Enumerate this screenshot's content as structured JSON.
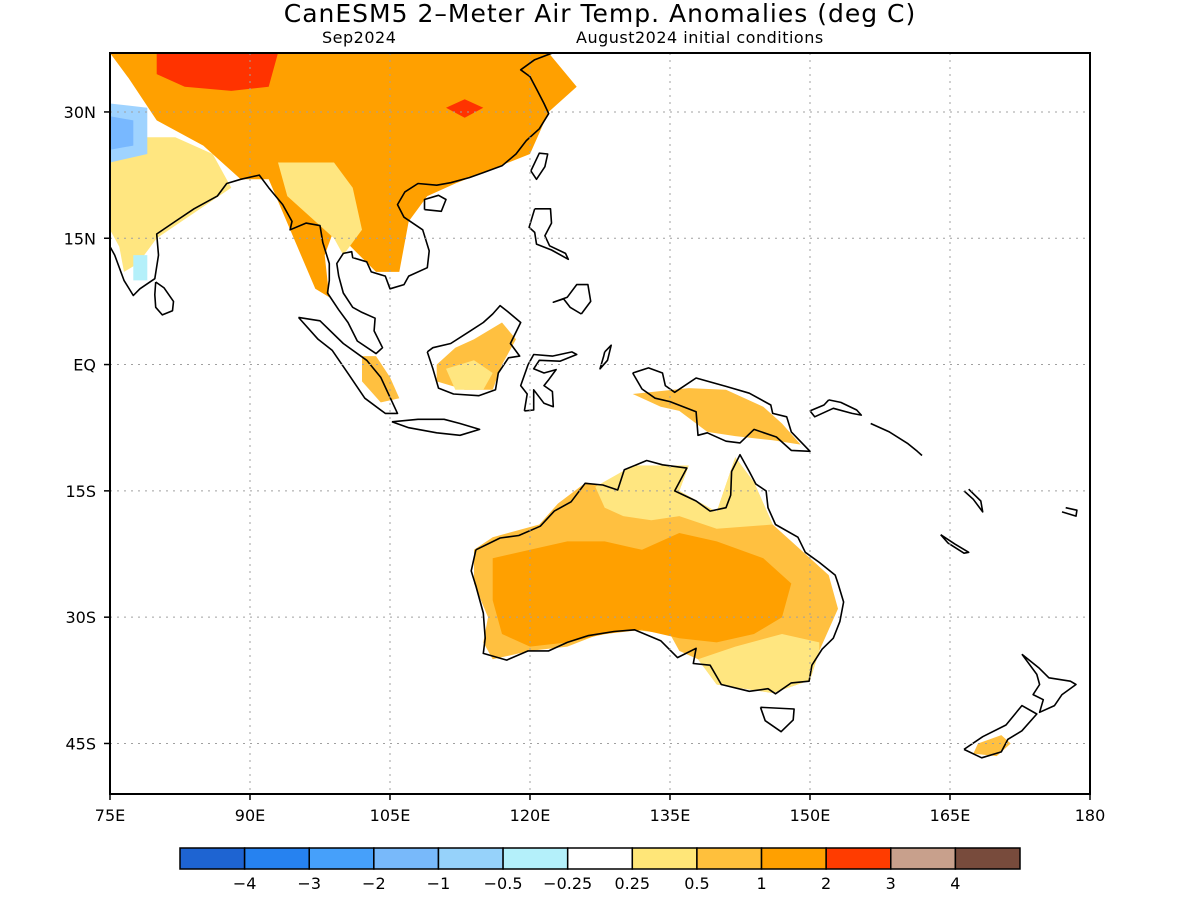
{
  "title": "CanESM5 2–Meter Air Temp. Anomalies (deg C)",
  "subtitle_left": "Sep2024",
  "subtitle_right": "August2024 initial conditions",
  "map": {
    "lon_range": [
      75,
      180
    ],
    "lat_range": [
      -51,
      37
    ],
    "lat_ticks": [
      {
        "value": 30,
        "label": "30N"
      },
      {
        "value": 15,
        "label": "15N"
      },
      {
        "value": 0,
        "label": "EQ"
      },
      {
        "value": -15,
        "label": "15S"
      },
      {
        "value": -30,
        "label": "30S"
      },
      {
        "value": -45,
        "label": "45S"
      }
    ],
    "lon_ticks": [
      {
        "value": 75,
        "label": "75E"
      },
      {
        "value": 90,
        "label": "90E"
      },
      {
        "value": 105,
        "label": "105E"
      },
      {
        "value": 120,
        "label": "120E"
      },
      {
        "value": 135,
        "label": "135E"
      },
      {
        "value": 150,
        "label": "150E"
      },
      {
        "value": 165,
        "label": "165E"
      },
      {
        "value": 180,
        "label": "180"
      }
    ],
    "grid": true,
    "anomaly_regions": [
      {
        "name": "Asia",
        "level": 1.5,
        "color": "#ffa000",
        "polygon": [
          [
            75,
            37
          ],
          [
            122,
            37
          ],
          [
            125,
            33
          ],
          [
            122,
            30
          ],
          [
            120,
            25
          ],
          [
            112,
            21.5
          ],
          [
            109,
            20
          ],
          [
            107,
            17
          ],
          [
            106,
            11
          ],
          [
            103.5,
            11
          ],
          [
            99,
            16
          ],
          [
            98,
            13
          ],
          [
            98.5,
            8
          ],
          [
            97,
            9
          ],
          [
            92,
            22
          ],
          [
            89,
            22
          ],
          [
            85,
            26
          ],
          [
            80,
            29
          ],
          [
            77,
            34
          ],
          [
            75,
            37
          ]
        ]
      },
      {
        "name": "India west",
        "level": 0.5,
        "color": "#ffe680",
        "polygon": [
          [
            75,
            27
          ],
          [
            82,
            27
          ],
          [
            86,
            25
          ],
          [
            88,
            21
          ],
          [
            84,
            18
          ],
          [
            80,
            15
          ],
          [
            78,
            12
          ],
          [
            76.5,
            11
          ],
          [
            76,
            14
          ],
          [
            75,
            16
          ]
        ]
      },
      {
        "name": "Indochina",
        "level": 0.5,
        "color": "#ffe680",
        "polygon": [
          [
            93,
            24
          ],
          [
            99,
            24
          ],
          [
            101,
            21
          ],
          [
            102,
            16
          ],
          [
            100,
            13
          ],
          [
            99,
            15
          ],
          [
            97,
            17
          ],
          [
            94,
            20
          ]
        ]
      },
      {
        "name": "Tibet hot",
        "level": 2.5,
        "color": "#ff3300",
        "polygon": [
          [
            80,
            37
          ],
          [
            93,
            37
          ],
          [
            92,
            33
          ],
          [
            88,
            32.5
          ],
          [
            83,
            33
          ],
          [
            80,
            34.5
          ]
        ]
      },
      {
        "name": "China hot",
        "level": 2.5,
        "color": "#ff3300",
        "polygon": [
          [
            111,
            30.5
          ],
          [
            113,
            31.5
          ],
          [
            115,
            30.5
          ],
          [
            113,
            29.3
          ]
        ]
      },
      {
        "name": "Pakistan cold",
        "level": -0.8,
        "color": "#9fd3ff",
        "polygon": [
          [
            75,
            31
          ],
          [
            79,
            30.5
          ],
          [
            79,
            25
          ],
          [
            75,
            24
          ]
        ]
      },
      {
        "name": "Pakistan cold core",
        "level": -1.5,
        "color": "#78b8ff",
        "polygon": [
          [
            75,
            29.5
          ],
          [
            77.5,
            29
          ],
          [
            77.5,
            26
          ],
          [
            75,
            25.5
          ]
        ]
      },
      {
        "name": "India light cold",
        "level": -0.3,
        "color": "#b4f0fa",
        "polygon": [
          [
            77.5,
            13
          ],
          [
            79,
            13
          ],
          [
            79,
            10
          ],
          [
            77.5,
            10
          ]
        ]
      },
      {
        "name": "Sumatra",
        "level": 1,
        "color": "#ffc040",
        "polygon": [
          [
            102,
            1
          ],
          [
            103.5,
            1
          ],
          [
            105,
            -1.5
          ],
          [
            106,
            -4
          ],
          [
            104,
            -4.5
          ],
          [
            102,
            -2
          ]
        ]
      },
      {
        "name": "Borneo",
        "level": 1,
        "color": "#ffc040",
        "polygon": [
          [
            110,
            0
          ],
          [
            112,
            2
          ],
          [
            114,
            3
          ],
          [
            117,
            5
          ],
          [
            118.5,
            3
          ],
          [
            117,
            0
          ],
          [
            116,
            -3
          ],
          [
            113,
            -3
          ],
          [
            110,
            -2
          ]
        ]
      },
      {
        "name": "Borneo light",
        "level": 0.5,
        "color": "#ffe680",
        "polygon": [
          [
            111,
            -0.5
          ],
          [
            114,
            0.5
          ],
          [
            116,
            -1
          ],
          [
            115,
            -3
          ],
          [
            112,
            -3
          ]
        ]
      },
      {
        "name": "New Guinea",
        "level": 1,
        "color": "#ffc040",
        "polygon": [
          [
            131,
            -3.5
          ],
          [
            137,
            -2.8
          ],
          [
            141,
            -3
          ],
          [
            145,
            -5
          ],
          [
            147,
            -7
          ],
          [
            149,
            -9.5
          ],
          [
            146,
            -9
          ],
          [
            142,
            -8.5
          ],
          [
            139,
            -8
          ],
          [
            136,
            -5.5
          ],
          [
            134,
            -5
          ]
        ]
      },
      {
        "name": "Australia",
        "level": 1,
        "color": "#ffc040",
        "polygon": [
          [
            114,
            -22
          ],
          [
            116,
            -20.5
          ],
          [
            121,
            -19
          ],
          [
            123,
            -16.5
          ],
          [
            126,
            -14
          ],
          [
            129,
            -14.8
          ],
          [
            131,
            -12
          ],
          [
            137,
            -12
          ],
          [
            136,
            -15
          ],
          [
            140,
            -17.5
          ],
          [
            142,
            -11
          ],
          [
            144,
            -14
          ],
          [
            146,
            -19
          ],
          [
            149,
            -22
          ],
          [
            152,
            -25
          ],
          [
            153,
            -29
          ],
          [
            151,
            -34
          ],
          [
            150,
            -37.5
          ],
          [
            146,
            -39
          ],
          [
            143,
            -38.5
          ],
          [
            140,
            -38
          ],
          [
            138,
            -35
          ],
          [
            136,
            -34
          ],
          [
            135,
            -32
          ],
          [
            131,
            -31.5
          ],
          [
            127,
            -32.2
          ],
          [
            124,
            -33.5
          ],
          [
            120,
            -34
          ],
          [
            116,
            -35
          ],
          [
            115,
            -33
          ],
          [
            115.5,
            -30
          ],
          [
            114,
            -26
          ]
        ]
      },
      {
        "name": "Australia core",
        "level": 1.5,
        "color": "#ffa000",
        "polygon": [
          [
            116,
            -23
          ],
          [
            120,
            -22
          ],
          [
            124,
            -21
          ],
          [
            128,
            -21
          ],
          [
            132,
            -22
          ],
          [
            136,
            -20
          ],
          [
            140,
            -21
          ],
          [
            145,
            -23
          ],
          [
            148,
            -26
          ],
          [
            147,
            -30
          ],
          [
            144,
            -32
          ],
          [
            140,
            -33
          ],
          [
            136,
            -32.5
          ],
          [
            132,
            -31.5
          ],
          [
            128,
            -32
          ],
          [
            124,
            -33
          ],
          [
            120,
            -33.5
          ],
          [
            117,
            -32
          ],
          [
            116,
            -28
          ]
        ]
      },
      {
        "name": "Australia north light",
        "level": 0.5,
        "color": "#ffe680",
        "polygon": [
          [
            127,
            -14.5
          ],
          [
            131,
            -12
          ],
          [
            137,
            -12
          ],
          [
            136,
            -15
          ],
          [
            140,
            -17.5
          ],
          [
            142,
            -11
          ],
          [
            144,
            -14
          ],
          [
            146,
            -19
          ],
          [
            140,
            -19.5
          ],
          [
            136,
            -18
          ],
          [
            133,
            -18.5
          ],
          [
            130,
            -18
          ],
          [
            128,
            -17
          ]
        ]
      },
      {
        "name": "Australia southeast light",
        "level": 0.5,
        "color": "#ffe680",
        "polygon": [
          [
            138,
            -35
          ],
          [
            142,
            -33.5
          ],
          [
            147,
            -32
          ],
          [
            151,
            -33
          ],
          [
            151,
            -34
          ],
          [
            150,
            -37.5
          ],
          [
            146,
            -39
          ],
          [
            143,
            -38.5
          ],
          [
            140,
            -38
          ]
        ]
      },
      {
        "name": "New Zealand South Island",
        "level": 1,
        "color": "#ffc040",
        "polygon": [
          [
            168,
            -45
          ],
          [
            170.5,
            -44
          ],
          [
            171.5,
            -45
          ],
          [
            170,
            -46.5
          ],
          [
            167.5,
            -46.2
          ]
        ]
      }
    ]
  },
  "colorbar": {
    "colors": [
      "#1e64d2",
      "#2682f0",
      "#46a0fa",
      "#78b9fa",
      "#96d2fa",
      "#b4f0fa",
      "#ffffff",
      "#ffe678",
      "#ffc03c",
      "#ffa000",
      "#ff3c00",
      "#c8a08c",
      "#784b3c"
    ],
    "labels": [
      "−4",
      "−3",
      "−2",
      "−1",
      "−0.5",
      "−0.25",
      "0.25",
      "0.5",
      "1",
      "2",
      "3",
      "4"
    ]
  }
}
